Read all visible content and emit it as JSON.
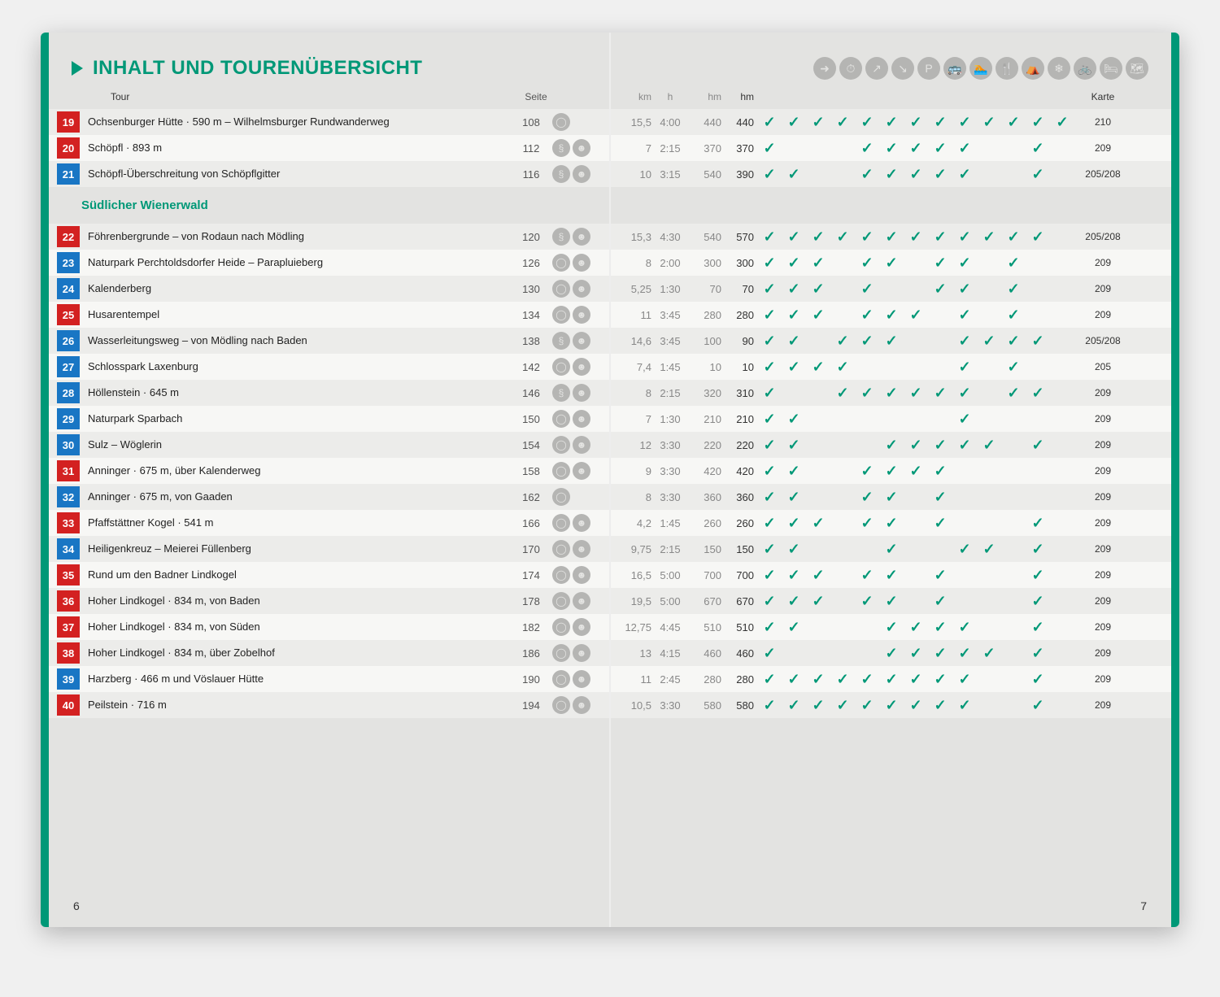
{
  "title": "INHALT UND TOURENÜBERSICHT",
  "col_labels": {
    "tour": "Tour",
    "seite": "Seite",
    "km": "km",
    "h": "h",
    "hm1": "hm",
    "hm2": "hm",
    "karte": "Karte"
  },
  "section": "Südlicher Wienerwald",
  "page_left": "6",
  "page_right": "7",
  "header_icons": [
    "➜",
    "⏱",
    "↗",
    "↘",
    "P",
    "🚌",
    "🏊",
    "🍴",
    "⛺",
    "❄",
    "🚲",
    "🛏",
    "🗺"
  ],
  "tours_top": [
    {
      "num": "19",
      "color": "red",
      "name": "Ochsenburger Hütte · 590 m – Wilhelmsburger Rundwanderweg",
      "seite": "108",
      "icons": [
        "O"
      ],
      "km": "15,5",
      "h": "4:00",
      "hm1": "440",
      "hm2": "440",
      "checks": [
        1,
        1,
        1,
        1,
        1,
        1,
        1,
        1,
        1,
        1,
        1,
        1,
        1
      ],
      "karte": "210"
    },
    {
      "num": "20",
      "color": "red",
      "name": "Schöpfl · 893 m",
      "seite": "112",
      "icons": [
        "S",
        "B"
      ],
      "km": "7",
      "h": "2:15",
      "hm1": "370",
      "hm2": "370",
      "checks": [
        1,
        0,
        0,
        0,
        1,
        1,
        1,
        1,
        1,
        0,
        0,
        1,
        0
      ],
      "karte": "209"
    },
    {
      "num": "21",
      "color": "blue",
      "name": "Schöpfl-Überschreitung von Schöpflgitter",
      "seite": "116",
      "icons": [
        "S",
        "B"
      ],
      "km": "10",
      "h": "3:15",
      "hm1": "540",
      "hm2": "390",
      "checks": [
        1,
        1,
        0,
        0,
        1,
        1,
        1,
        1,
        1,
        0,
        0,
        1,
        0
      ],
      "karte": "205/208"
    }
  ],
  "tours": [
    {
      "num": "22",
      "color": "red",
      "name": "Föhrenbergrunde – von Rodaun nach Mödling",
      "seite": "120",
      "icons": [
        "S",
        "B"
      ],
      "km": "15,3",
      "h": "4:30",
      "hm1": "540",
      "hm2": "570",
      "checks": [
        1,
        1,
        1,
        1,
        1,
        1,
        1,
        1,
        1,
        1,
        1,
        1,
        0
      ],
      "karte": "205/208"
    },
    {
      "num": "23",
      "color": "blue",
      "name": "Naturpark Perchtoldsdorfer Heide – Parapluieberg",
      "seite": "126",
      "icons": [
        "O",
        "B"
      ],
      "km": "8",
      "h": "2:00",
      "hm1": "300",
      "hm2": "300",
      "checks": [
        1,
        1,
        1,
        0,
        1,
        1,
        0,
        1,
        1,
        0,
        1,
        0,
        0
      ],
      "karte": "209"
    },
    {
      "num": "24",
      "color": "blue",
      "name": "Kalenderberg",
      "seite": "130",
      "icons": [
        "O",
        "B"
      ],
      "km": "5,25",
      "h": "1:30",
      "hm1": "70",
      "hm2": "70",
      "checks": [
        1,
        1,
        1,
        0,
        1,
        0,
        0,
        1,
        1,
        0,
        1,
        0,
        0
      ],
      "karte": "209"
    },
    {
      "num": "25",
      "color": "red",
      "name": "Husarentempel",
      "seite": "134",
      "icons": [
        "O",
        "B"
      ],
      "km": "11",
      "h": "3:45",
      "hm1": "280",
      "hm2": "280",
      "checks": [
        1,
        1,
        1,
        0,
        1,
        1,
        1,
        0,
        1,
        0,
        1,
        0,
        0
      ],
      "karte": "209"
    },
    {
      "num": "26",
      "color": "blue",
      "name": "Wasserleitungsweg – von Mödling nach Baden",
      "seite": "138",
      "icons": [
        "S",
        "B"
      ],
      "km": "14,6",
      "h": "3:45",
      "hm1": "100",
      "hm2": "90",
      "checks": [
        1,
        1,
        0,
        1,
        1,
        1,
        0,
        0,
        1,
        1,
        1,
        1,
        0
      ],
      "karte": "205/208"
    },
    {
      "num": "27",
      "color": "blue",
      "name": "Schlosspark Laxenburg",
      "seite": "142",
      "icons": [
        "O",
        "B"
      ],
      "km": "7,4",
      "h": "1:45",
      "hm1": "10",
      "hm2": "10",
      "checks": [
        1,
        1,
        1,
        1,
        0,
        0,
        0,
        0,
        1,
        0,
        1,
        0,
        0
      ],
      "karte": "205"
    },
    {
      "num": "28",
      "color": "blue",
      "name": "Höllenstein · 645 m",
      "seite": "146",
      "icons": [
        "S",
        "B"
      ],
      "km": "8",
      "h": "2:15",
      "hm1": "320",
      "hm2": "310",
      "checks": [
        1,
        0,
        0,
        1,
        1,
        1,
        1,
        1,
        1,
        0,
        1,
        1,
        0
      ],
      "karte": "209"
    },
    {
      "num": "29",
      "color": "blue",
      "name": "Naturpark Sparbach",
      "seite": "150",
      "icons": [
        "O",
        "B"
      ],
      "km": "7",
      "h": "1:30",
      "hm1": "210",
      "hm2": "210",
      "checks": [
        1,
        1,
        0,
        0,
        0,
        0,
        0,
        0,
        1,
        0,
        0,
        0,
        0
      ],
      "karte": "209"
    },
    {
      "num": "30",
      "color": "blue",
      "name": "Sulz – Wöglerin",
      "seite": "154",
      "icons": [
        "O",
        "B"
      ],
      "km": "12",
      "h": "3:30",
      "hm1": "220",
      "hm2": "220",
      "checks": [
        1,
        1,
        0,
        0,
        0,
        1,
        1,
        1,
        1,
        1,
        0,
        1,
        0
      ],
      "karte": "209"
    },
    {
      "num": "31",
      "color": "red",
      "name": "Anninger · 675 m, über Kalenderweg",
      "seite": "158",
      "icons": [
        "O",
        "B"
      ],
      "km": "9",
      "h": "3:30",
      "hm1": "420",
      "hm2": "420",
      "checks": [
        1,
        1,
        0,
        0,
        1,
        1,
        1,
        1,
        0,
        0,
        0,
        0,
        0
      ],
      "karte": "209"
    },
    {
      "num": "32",
      "color": "blue",
      "name": "Anninger · 675 m, von Gaaden",
      "seite": "162",
      "icons": [
        "O"
      ],
      "km": "8",
      "h": "3:30",
      "hm1": "360",
      "hm2": "360",
      "checks": [
        1,
        1,
        0,
        0,
        1,
        1,
        0,
        1,
        0,
        0,
        0,
        0,
        0
      ],
      "karte": "209"
    },
    {
      "num": "33",
      "color": "red",
      "name": "Pfaffstättner Kogel · 541 m",
      "seite": "166",
      "icons": [
        "O",
        "B"
      ],
      "km": "4,2",
      "h": "1:45",
      "hm1": "260",
      "hm2": "260",
      "checks": [
        1,
        1,
        1,
        0,
        1,
        1,
        0,
        1,
        0,
        0,
        0,
        1,
        0
      ],
      "karte": "209"
    },
    {
      "num": "34",
      "color": "blue",
      "name": "Heiligenkreuz – Meierei Füllenberg",
      "seite": "170",
      "icons": [
        "O",
        "B"
      ],
      "km": "9,75",
      "h": "2:15",
      "hm1": "150",
      "hm2": "150",
      "checks": [
        1,
        1,
        0,
        0,
        0,
        1,
        0,
        0,
        1,
        1,
        0,
        1,
        0
      ],
      "karte": "209"
    },
    {
      "num": "35",
      "color": "red",
      "name": "Rund um den Badner Lindkogel",
      "seite": "174",
      "icons": [
        "O",
        "B"
      ],
      "km": "16,5",
      "h": "5:00",
      "hm1": "700",
      "hm2": "700",
      "checks": [
        1,
        1,
        1,
        0,
        1,
        1,
        0,
        1,
        0,
        0,
        0,
        1,
        0
      ],
      "karte": "209"
    },
    {
      "num": "36",
      "color": "red",
      "name": "Hoher Lindkogel · 834 m, von Baden",
      "seite": "178",
      "icons": [
        "O",
        "B"
      ],
      "km": "19,5",
      "h": "5:00",
      "hm1": "670",
      "hm2": "670",
      "checks": [
        1,
        1,
        1,
        0,
        1,
        1,
        0,
        1,
        0,
        0,
        0,
        1,
        0
      ],
      "karte": "209"
    },
    {
      "num": "37",
      "color": "red",
      "name": "Hoher Lindkogel · 834 m, von Süden",
      "seite": "182",
      "icons": [
        "O",
        "B"
      ],
      "km": "12,75",
      "h": "4:45",
      "hm1": "510",
      "hm2": "510",
      "checks": [
        1,
        1,
        0,
        0,
        0,
        1,
        1,
        1,
        1,
        0,
        0,
        1,
        0
      ],
      "karte": "209"
    },
    {
      "num": "38",
      "color": "red",
      "name": "Hoher Lindkogel · 834 m, über Zobelhof",
      "seite": "186",
      "icons": [
        "O",
        "B"
      ],
      "km": "13",
      "h": "4:15",
      "hm1": "460",
      "hm2": "460",
      "checks": [
        1,
        0,
        0,
        0,
        0,
        1,
        1,
        1,
        1,
        1,
        0,
        1,
        0
      ],
      "karte": "209"
    },
    {
      "num": "39",
      "color": "blue",
      "name": "Harzberg · 466 m und Vöslauer Hütte",
      "seite": "190",
      "icons": [
        "O",
        "B"
      ],
      "km": "11",
      "h": "2:45",
      "hm1": "280",
      "hm2": "280",
      "checks": [
        1,
        1,
        1,
        1,
        1,
        1,
        1,
        1,
        1,
        0,
        0,
        1,
        0
      ],
      "karte": "209"
    },
    {
      "num": "40",
      "color": "red",
      "name": "Peilstein · 716 m",
      "seite": "194",
      "icons": [
        "O",
        "B"
      ],
      "km": "10,5",
      "h": "3:30",
      "hm1": "580",
      "hm2": "580",
      "checks": [
        1,
        1,
        1,
        1,
        1,
        1,
        1,
        1,
        1,
        0,
        0,
        1,
        0
      ],
      "karte": "209"
    }
  ]
}
